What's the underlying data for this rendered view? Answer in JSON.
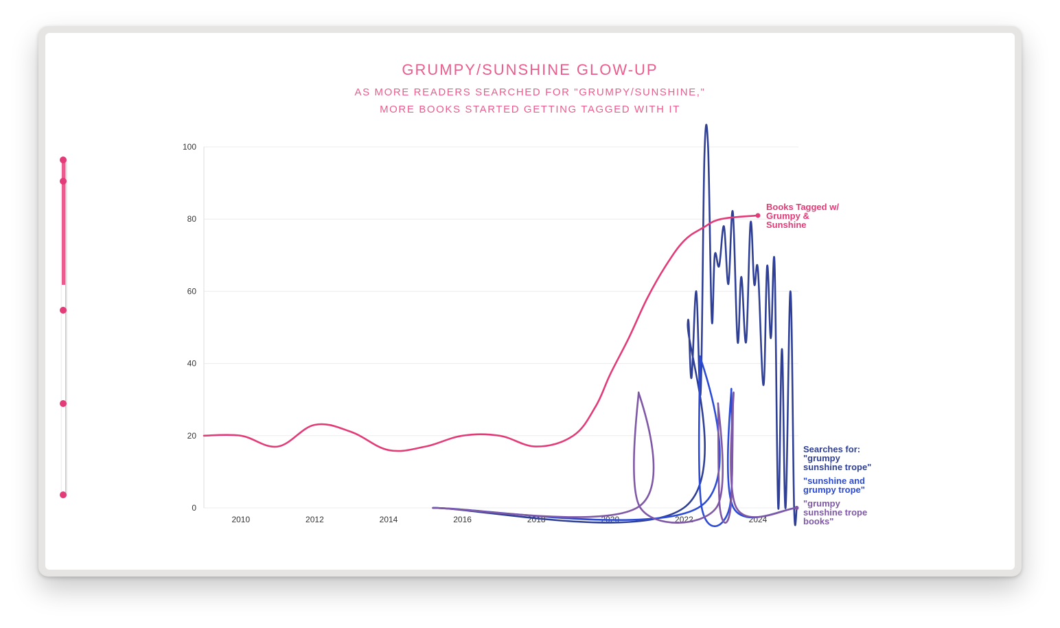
{
  "chart_data": {
    "type": "line",
    "title": "GRUMPY/SUNSHINE GLOW-UP",
    "subtitle": [
      "AS MORE READERS SEARCHED FOR \"GRUMPY/SUNSHINE,\"",
      "MORE BOOKS STARTED GETTING TAGGED WITH IT"
    ],
    "xlabel": "",
    "ylabel": "",
    "xlim": [
      2009,
      2025.1
    ],
    "ylim": [
      0,
      100
    ],
    "x_ticks": [
      2010,
      2012,
      2014,
      2016,
      2018,
      2020,
      2022,
      2024
    ],
    "y_ticks": [
      0,
      20,
      40,
      60,
      80,
      100
    ],
    "grid": "horizontal",
    "series": [
      {
        "name": "Books Tagged w/ Grumpy & Sunshine",
        "color": "#e23b78",
        "points": [
          [
            2009,
            20
          ],
          [
            2010,
            20
          ],
          [
            2011,
            17
          ],
          [
            2012,
            23
          ],
          [
            2013,
            21
          ],
          [
            2014,
            16
          ],
          [
            2015,
            17
          ],
          [
            2016,
            20
          ],
          [
            2017,
            20
          ],
          [
            2018,
            17
          ],
          [
            2019,
            20
          ],
          [
            2019.6,
            28
          ],
          [
            2020,
            37
          ],
          [
            2020.5,
            47
          ],
          [
            2021,
            58
          ],
          [
            2021.5,
            67
          ],
          [
            2022,
            74
          ],
          [
            2022.5,
            77.5
          ],
          [
            2023,
            80
          ],
          [
            2024,
            81
          ]
        ]
      },
      {
        "name": "\"grumpy sunshine trope\"",
        "color": "#2e3f95",
        "points": [
          [
            2015.2,
            0
          ],
          [
            2021.99,
            0
          ],
          [
            2022.1,
            51
          ],
          [
            2022.2,
            36
          ],
          [
            2022.33,
            60
          ],
          [
            2022.45,
            32
          ],
          [
            2022.55,
            97
          ],
          [
            2022.65,
            100
          ],
          [
            2022.75,
            52
          ],
          [
            2022.83,
            70
          ],
          [
            2022.95,
            67
          ],
          [
            2023.08,
            78
          ],
          [
            2023.2,
            62
          ],
          [
            2023.32,
            82
          ],
          [
            2023.45,
            46
          ],
          [
            2023.55,
            64
          ],
          [
            2023.68,
            46
          ],
          [
            2023.8,
            79
          ],
          [
            2023.9,
            62
          ],
          [
            2024.0,
            66
          ],
          [
            2024.15,
            34
          ],
          [
            2024.25,
            67
          ],
          [
            2024.35,
            47
          ],
          [
            2024.45,
            68
          ],
          [
            2024.55,
            0
          ],
          [
            2024.65,
            44
          ],
          [
            2024.75,
            0
          ],
          [
            2024.88,
            60
          ],
          [
            2024.98,
            0
          ],
          [
            2025.05,
            0
          ]
        ]
      },
      {
        "name": "\"sunshine and grumpy trope\"",
        "color": "#2b4ad6",
        "points": [
          [
            2015.2,
            0
          ],
          [
            2022.38,
            0
          ],
          [
            2022.43,
            42
          ],
          [
            2022.48,
            0
          ],
          [
            2023.23,
            0
          ],
          [
            2023.28,
            33
          ],
          [
            2023.34,
            0
          ],
          [
            2025.05,
            0
          ]
        ]
      },
      {
        "name": "\"grumpy sunshine trope books\"",
        "color": "#7e58a6",
        "points": [
          [
            2015.2,
            0
          ],
          [
            2020.72,
            0
          ],
          [
            2020.77,
            32
          ],
          [
            2020.82,
            0
          ],
          [
            2022.87,
            0
          ],
          [
            2022.92,
            29
          ],
          [
            2022.97,
            0
          ],
          [
            2023.26,
            0
          ],
          [
            2023.34,
            32
          ],
          [
            2023.42,
            0
          ],
          [
            2025.05,
            0
          ]
        ]
      }
    ],
    "annotations": {
      "books_label": [
        "Books Tagged w/",
        "Grumpy &",
        "Sunshine"
      ],
      "searches_header": "Searches for:",
      "search1_label": [
        "\"grumpy",
        "sunshine trope\""
      ],
      "search2_label": [
        "\"sunshine and",
        "grumpy trope\""
      ],
      "search3_label": [
        "\"grumpy",
        "sunshine trope",
        "books\""
      ]
    }
  },
  "progress_slider": {
    "color": "#ea5c8e",
    "steps": 6,
    "completed_fraction": 0.37
  }
}
